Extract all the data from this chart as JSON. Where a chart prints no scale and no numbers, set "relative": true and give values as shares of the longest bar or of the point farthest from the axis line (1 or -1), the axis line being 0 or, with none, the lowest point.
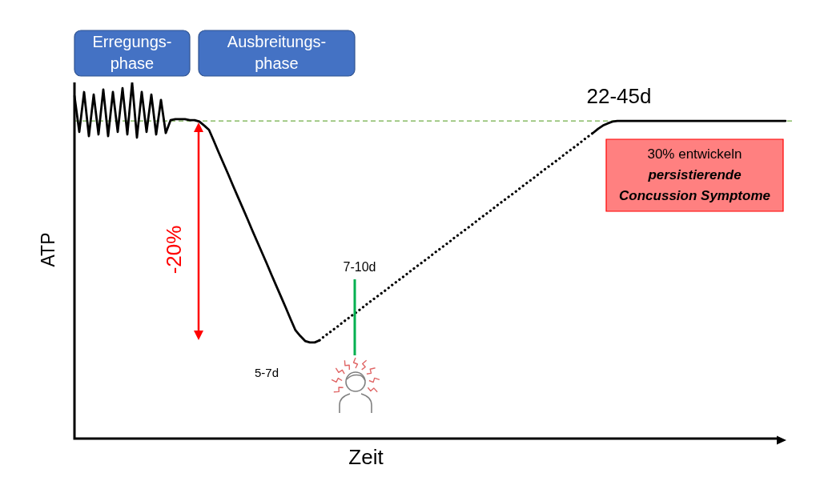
{
  "chart_data": {
    "type": "line",
    "relative": true,
    "xlabel": "Zeit",
    "ylabel": "ATP",
    "marker": "none",
    "categories": [
      null,
      null,
      null,
      null,
      null,
      null,
      null,
      null,
      null,
      null,
      null,
      null,
      null,
      null,
      null,
      null,
      null,
      null,
      null,
      null,
      null,
      null,
      null,
      null,
      null,
      null,
      null,
      null,
      null,
      null,
      null,
      null,
      null,
      null,
      null,
      null,
      null,
      null,
      null,
      null,
      null,
      null,
      null,
      null,
      null,
      null,
      null,
      null,
      null,
      null,
      null,
      null,
      null,
      null,
      null,
      null,
      null,
      null,
      null,
      null,
      null,
      null,
      null,
      null,
      null,
      null,
      null,
      null,
      null,
      null,
      null,
      null,
      null,
      null,
      null,
      null,
      null,
      null,
      null,
      null,
      null,
      null,
      null,
      null,
      null,
      null,
      null,
      null,
      null,
      null,
      null,
      null,
      null,
      null,
      null,
      null,
      null,
      null,
      null,
      null,
      null,
      null,
      null,
      null,
      null,
      null,
      null,
      null,
      null,
      null,
      null,
      null,
      null,
      null,
      null,
      null,
      null,
      null,
      null,
      null,
      null,
      null,
      null,
      null,
      null,
      null,
      null,
      null,
      null,
      null,
      null,
      null,
      null,
      null,
      null,
      null,
      null,
      null,
      null,
      null,
      null,
      null,
      null,
      null,
      null,
      null,
      null,
      null,
      null
    ],
    "series": [
      {
        "color": "#000000",
        "values": [
          0.962,
          0.861,
          0.973,
          0.849,
          0.966,
          0.854,
          0.98,
          0.849,
          0.973,
          0.861,
          0.984,
          0.854,
          1,
          0.845,
          0.973,
          0.861,
          0.966,
          0.854,
          0.951,
          0.858,
          0.894,
          0.897,
          0.897,
          0.897,
          0.894,
          0.894,
          0.89,
          0.879,
          0.867,
          0.836,
          0.804,
          0.773,
          0.742,
          0.71,
          0.679,
          0.648,
          0.617,
          0.585,
          0.554,
          0.523,
          0.492,
          0.46,
          0.429,
          0.398,
          0.367,
          0.335,
          0.304,
          0.288,
          0.274,
          0.27,
          0.27,
          0.276,
          null,
          null,
          null,
          null,
          null,
          null,
          null,
          null,
          null,
          null,
          null,
          null,
          null,
          null,
          null,
          null,
          null,
          null,
          null,
          null,
          null,
          null,
          null,
          null,
          null,
          null,
          null,
          null,
          null,
          null,
          null,
          null,
          null,
          null,
          null,
          null,
          null,
          null,
          null,
          null,
          null,
          null,
          null,
          null,
          null,
          null,
          null,
          null,
          null,
          null,
          null,
          null,
          null,
          null,
          null,
          null,
          null,
          null,
          null,
          null,
          null,
          null,
          null,
          null,
          null,
          null,
          null,
          null,
          null,
          null,
          null,
          null,
          null,
          null,
          null,
          null,
          null,
          null,
          null,
          null,
          null,
          null,
          null,
          null,
          null,
          null,
          null,
          null,
          null,
          null,
          null,
          null,
          null,
          null,
          null,
          null,
          null
        ]
      },
      {
        "color": "#000000",
        "line_style": "dotted",
        "values": [
          null,
          null,
          null,
          null,
          null,
          null,
          null,
          null,
          null,
          null,
          null,
          null,
          null,
          null,
          null,
          null,
          null,
          null,
          null,
          null,
          null,
          null,
          null,
          null,
          null,
          null,
          null,
          null,
          null,
          null,
          null,
          null,
          null,
          null,
          null,
          null,
          null,
          null,
          null,
          null,
          null,
          null,
          null,
          null,
          null,
          null,
          null,
          null,
          null,
          null,
          null,
          0.276,
          0.287,
          0.297,
          0.307,
          0.317,
          0.328,
          0.338,
          0.348,
          0.358,
          0.368,
          0.379,
          0.389,
          0.399,
          0.409,
          0.419,
          0.43,
          0.44,
          0.45,
          0.46,
          0.471,
          0.481,
          0.491,
          0.501,
          0.511,
          0.522,
          0.532,
          0.542,
          0.552,
          0.563,
          0.573,
          0.583,
          0.593,
          0.603,
          0.614,
          0.624,
          0.634,
          0.644,
          0.655,
          0.665,
          0.675,
          0.685,
          0.695,
          0.706,
          0.716,
          0.726,
          0.736,
          0.747,
          0.757,
          0.767,
          0.777,
          0.787,
          0.798,
          0.808,
          0.818,
          0.828,
          0.839,
          0.849,
          0.859,
          null,
          null,
          null,
          null,
          null,
          null,
          null,
          null,
          null,
          null,
          null,
          null,
          null,
          null,
          null,
          null,
          null,
          null,
          null,
          null,
          null,
          null,
          null,
          null,
          null,
          null,
          null,
          null,
          null,
          null,
          null,
          null,
          null,
          null,
          null,
          null,
          null,
          null,
          null,
          null
        ]
      },
      {
        "color": "#000000",
        "values": [
          null,
          null,
          null,
          null,
          null,
          null,
          null,
          null,
          null,
          null,
          null,
          null,
          null,
          null,
          null,
          null,
          null,
          null,
          null,
          null,
          null,
          null,
          null,
          null,
          null,
          null,
          null,
          null,
          null,
          null,
          null,
          null,
          null,
          null,
          null,
          null,
          null,
          null,
          null,
          null,
          null,
          null,
          null,
          null,
          null,
          null,
          null,
          null,
          null,
          null,
          null,
          null,
          null,
          null,
          null,
          null,
          null,
          null,
          null,
          null,
          null,
          null,
          null,
          null,
          null,
          null,
          null,
          null,
          null,
          null,
          null,
          null,
          null,
          null,
          null,
          null,
          null,
          null,
          null,
          null,
          null,
          null,
          null,
          null,
          null,
          null,
          null,
          null,
          null,
          null,
          null,
          null,
          null,
          null,
          null,
          null,
          null,
          null,
          null,
          null,
          null,
          null,
          null,
          null,
          null,
          null,
          null,
          null,
          0.859,
          0.87,
          0.879,
          0.885,
          0.89,
          0.892,
          0.892,
          0.892,
          0.892,
          0.892,
          0.892,
          0.892,
          0.892,
          0.892,
          0.892,
          0.892,
          0.892,
          0.892,
          0.892,
          0.892,
          0.892,
          0.892,
          0.892,
          0.892,
          0.892,
          0.892,
          0.892,
          0.892,
          0.892,
          0.892,
          0.892,
          0.892,
          0.892,
          0.892,
          0.892,
          0.892,
          0.892,
          0.892,
          0.892,
          0.892,
          0.892
        ]
      }
    ],
    "ref_lines": [
      {
        "axis": "y",
        "value": 0.892,
        "color": "#70ad47",
        "line_style": "dashed"
      }
    ],
    "annotations": [
      "Erregungs-\nphase",
      "Ausbreitungs-\nphase",
      "-20%",
      "5-7d",
      "7-10d",
      "22-45d",
      "30% entwickeln\npersistierende\nConcussion Symptome"
    ]
  }
}
